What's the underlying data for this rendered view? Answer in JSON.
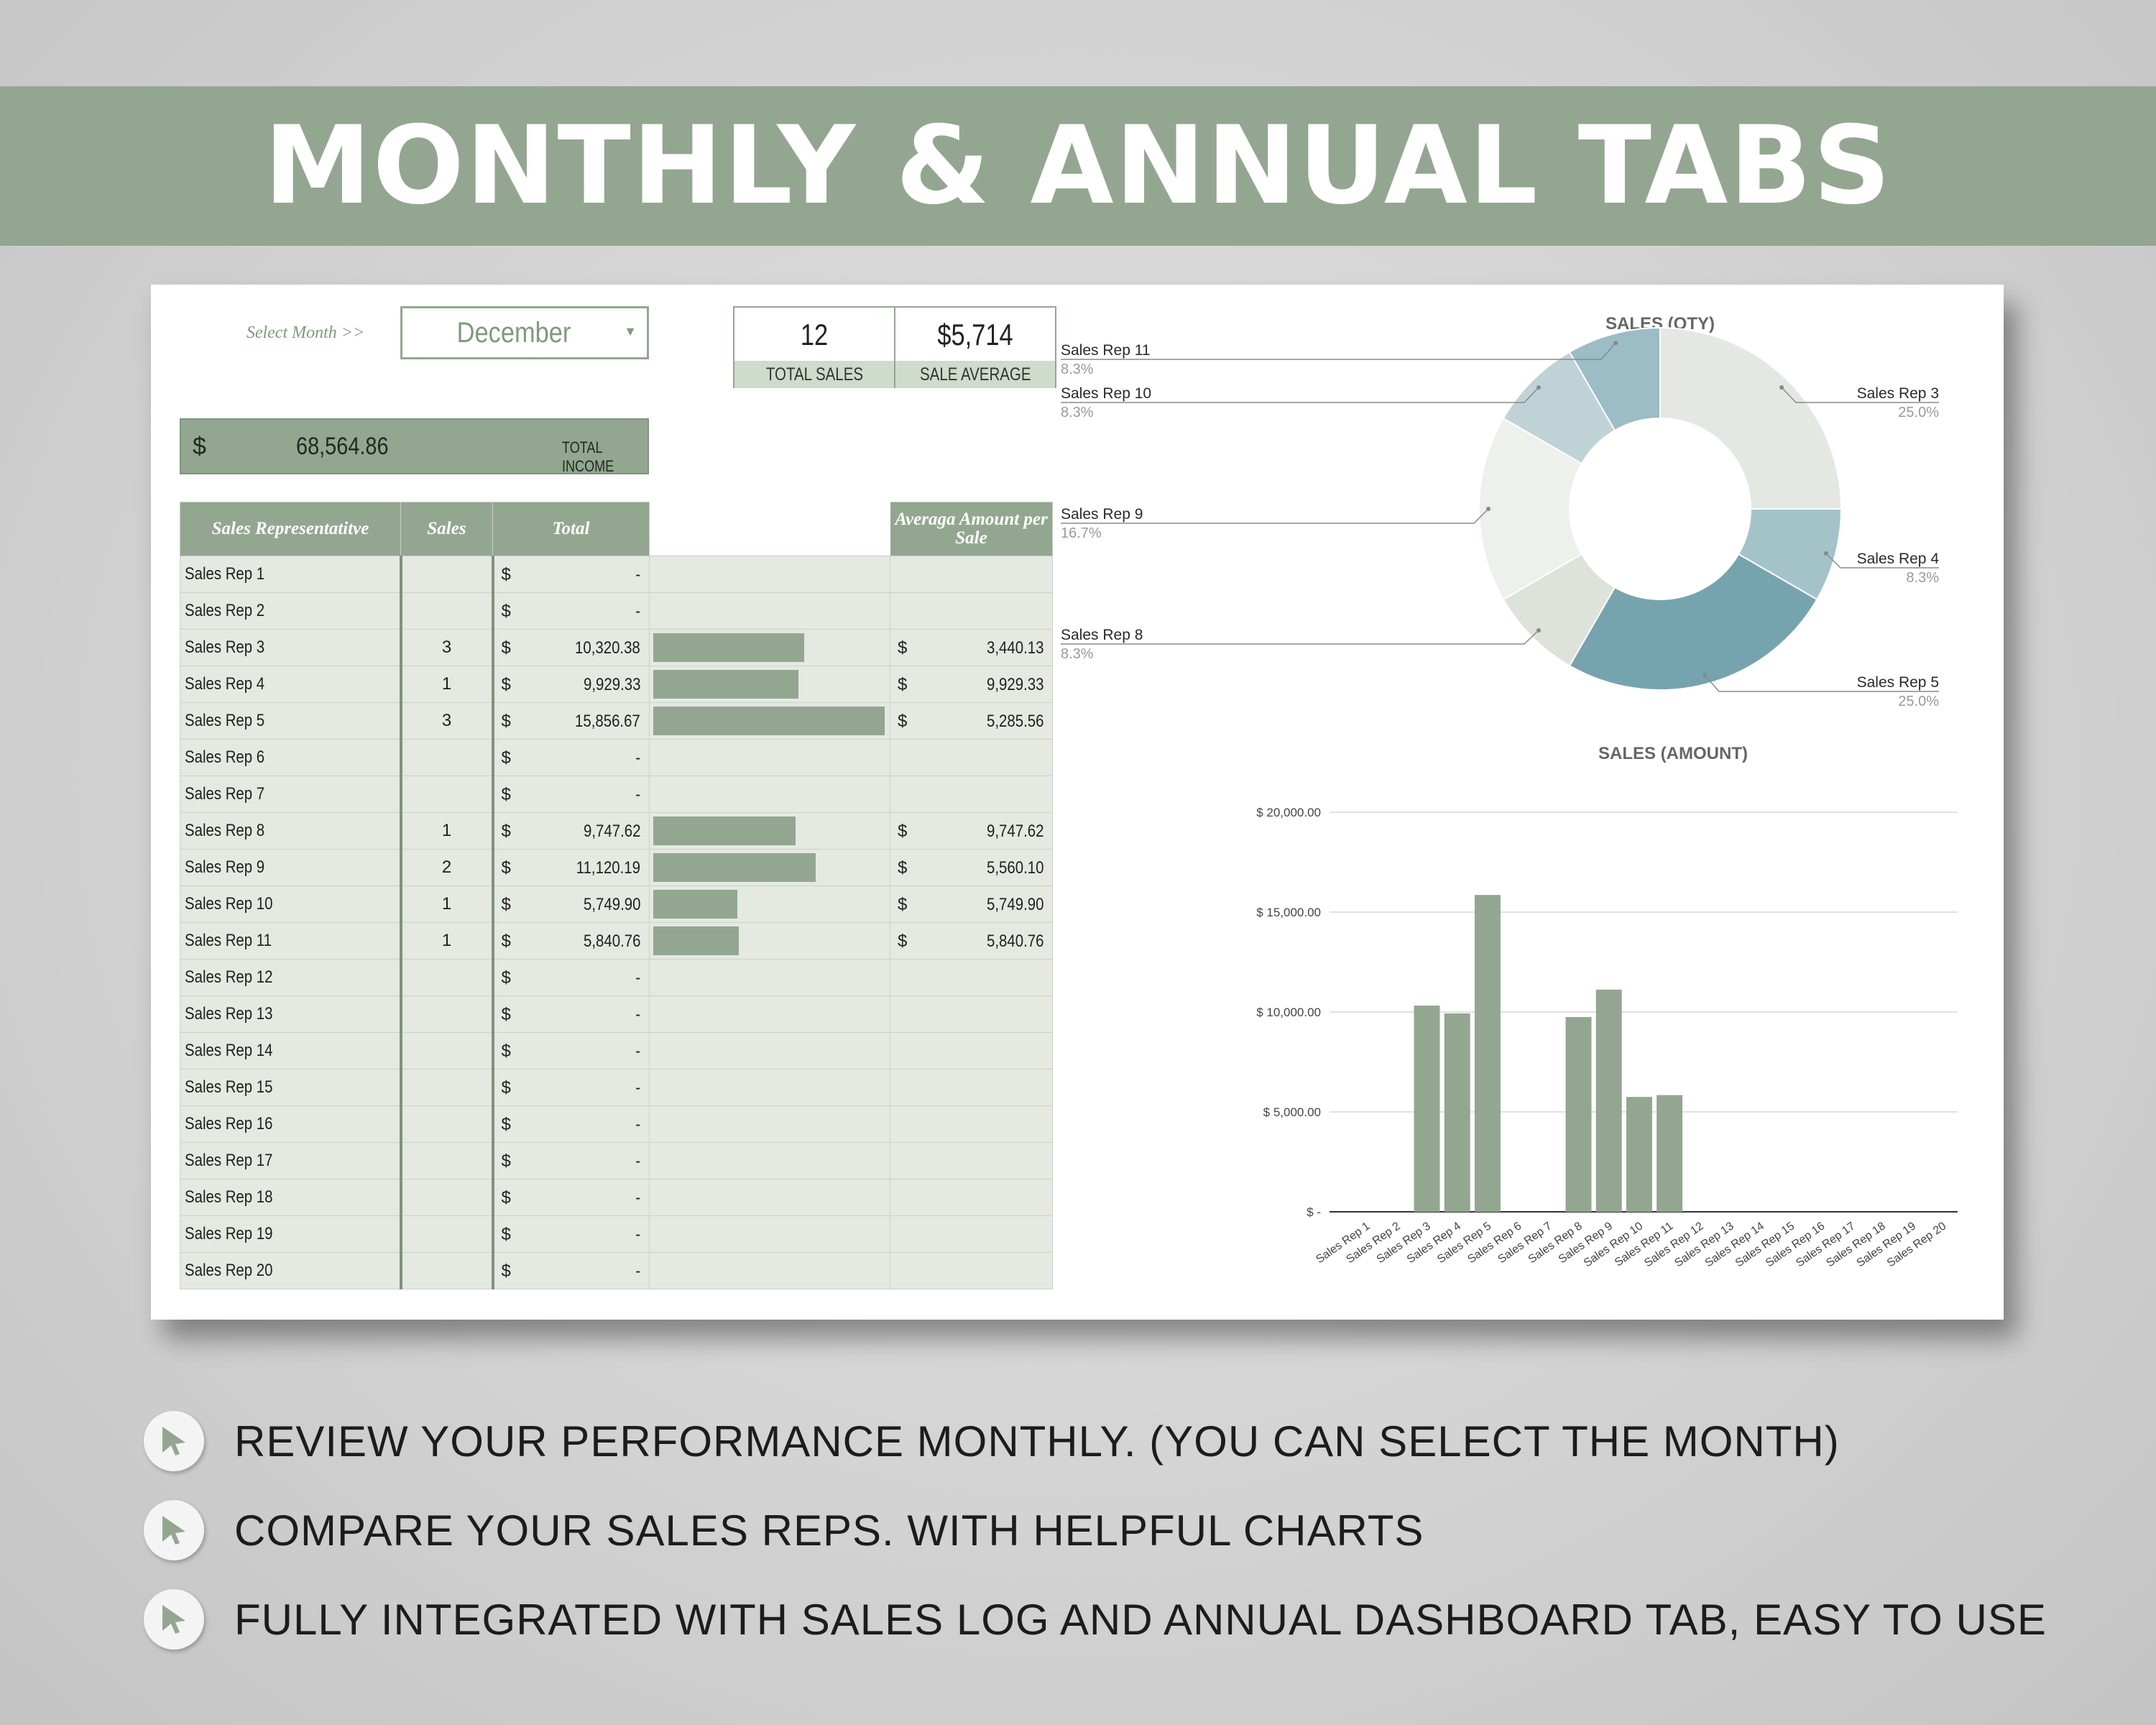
{
  "banner": {
    "title": "MONTHLY & ANNUAL TABS"
  },
  "dashboard": {
    "select_month_label": "Select Month >>",
    "selected_month": "December",
    "kpis": [
      {
        "value": "12",
        "label": "TOTAL SALES"
      },
      {
        "value": "$5,714",
        "label": "SALE AVERAGE"
      }
    ],
    "income": {
      "currency": "$",
      "value": "68,564.86",
      "label": "TOTAL INCOME"
    },
    "table": {
      "headers": [
        "Sales Representatitve",
        "Sales",
        "Total",
        "",
        "Averaga Amount per Sale"
      ],
      "rows": [
        {
          "name": "Sales Rep 1",
          "sales": "",
          "currency": "$",
          "total": "-",
          "bar": 0,
          "avg_currency": "",
          "avg": ""
        },
        {
          "name": "Sales Rep 2",
          "sales": "",
          "currency": "$",
          "total": "-",
          "bar": 0,
          "avg_currency": "",
          "avg": ""
        },
        {
          "name": "Sales Rep 3",
          "sales": "3",
          "currency": "$",
          "total": "10,320.38",
          "bar": 10320.38,
          "avg_currency": "$",
          "avg": "3,440.13"
        },
        {
          "name": "Sales Rep 4",
          "sales": "1",
          "currency": "$",
          "total": "9,929.33",
          "bar": 9929.33,
          "avg_currency": "$",
          "avg": "9,929.33"
        },
        {
          "name": "Sales Rep 5",
          "sales": "3",
          "currency": "$",
          "total": "15,856.67",
          "bar": 15856.67,
          "avg_currency": "$",
          "avg": "5,285.56"
        },
        {
          "name": "Sales Rep 6",
          "sales": "",
          "currency": "$",
          "total": "-",
          "bar": 0,
          "avg_currency": "",
          "avg": ""
        },
        {
          "name": "Sales Rep 7",
          "sales": "",
          "currency": "$",
          "total": "-",
          "bar": 0,
          "avg_currency": "",
          "avg": ""
        },
        {
          "name": "Sales Rep 8",
          "sales": "1",
          "currency": "$",
          "total": "9,747.62",
          "bar": 9747.62,
          "avg_currency": "$",
          "avg": "9,747.62"
        },
        {
          "name": "Sales Rep 9",
          "sales": "2",
          "currency": "$",
          "total": "11,120.19",
          "bar": 11120.19,
          "avg_currency": "$",
          "avg": "5,560.10"
        },
        {
          "name": "Sales Rep 10",
          "sales": "1",
          "currency": "$",
          "total": "5,749.90",
          "bar": 5749.9,
          "avg_currency": "$",
          "avg": "5,749.90"
        },
        {
          "name": "Sales Rep 11",
          "sales": "1",
          "currency": "$",
          "total": "5,840.76",
          "bar": 5840.76,
          "avg_currency": "$",
          "avg": "5,840.76"
        },
        {
          "name": "Sales Rep 12",
          "sales": "",
          "currency": "$",
          "total": "-",
          "bar": 0,
          "avg_currency": "",
          "avg": ""
        },
        {
          "name": "Sales Rep 13",
          "sales": "",
          "currency": "$",
          "total": "-",
          "bar": 0,
          "avg_currency": "",
          "avg": ""
        },
        {
          "name": "Sales Rep 14",
          "sales": "",
          "currency": "$",
          "total": "-",
          "bar": 0,
          "avg_currency": "",
          "avg": ""
        },
        {
          "name": "Sales Rep 15",
          "sales": "",
          "currency": "$",
          "total": "-",
          "bar": 0,
          "avg_currency": "",
          "avg": ""
        },
        {
          "name": "Sales Rep 16",
          "sales": "",
          "currency": "$",
          "total": "-",
          "bar": 0,
          "avg_currency": "",
          "avg": ""
        },
        {
          "name": "Sales Rep 17",
          "sales": "",
          "currency": "$",
          "total": "-",
          "bar": 0,
          "avg_currency": "",
          "avg": ""
        },
        {
          "name": "Sales Rep 18",
          "sales": "",
          "currency": "$",
          "total": "-",
          "bar": 0,
          "avg_currency": "",
          "avg": ""
        },
        {
          "name": "Sales Rep 19",
          "sales": "",
          "currency": "$",
          "total": "-",
          "bar": 0,
          "avg_currency": "",
          "avg": ""
        },
        {
          "name": "Sales Rep 20",
          "sales": "",
          "currency": "$",
          "total": "-",
          "bar": 0,
          "avg_currency": "",
          "avg": ""
        }
      ]
    }
  },
  "chart_data": [
    {
      "type": "pie",
      "title": "SALES (QTY)",
      "donut": true,
      "slices": [
        {
          "label": "Sales Rep 3",
          "value": 3,
          "percent": "25.0%",
          "color": "#e5e8e2"
        },
        {
          "label": "Sales Rep 4",
          "value": 1,
          "percent": "8.3%",
          "color": "#a4c3c9"
        },
        {
          "label": "Sales Rep 5",
          "value": 3,
          "percent": "25.0%",
          "color": "#76a4ae"
        },
        {
          "label": "Sales Rep 8",
          "value": 1,
          "percent": "8.3%",
          "color": "#dde2db"
        },
        {
          "label": "Sales Rep 9",
          "value": 2,
          "percent": "16.7%",
          "color": "#eef0ec"
        },
        {
          "label": "Sales Rep 10",
          "value": 1,
          "percent": "8.3%",
          "color": "#bfd3d7"
        },
        {
          "label": "Sales Rep 11",
          "value": 1,
          "percent": "8.3%",
          "color": "#9cbcc6"
        }
      ]
    },
    {
      "type": "bar",
      "title": "SALES (AMOUNT)",
      "categories": [
        "Sales Rep 1",
        "Sales Rep 2",
        "Sales Rep 3",
        "Sales Rep 4",
        "Sales Rep 5",
        "Sales Rep 6",
        "Sales Rep 7",
        "Sales Rep 8",
        "Sales Rep 9",
        "Sales Rep 10",
        "Sales Rep 11",
        "Sales Rep 12",
        "Sales Rep 13",
        "Sales Rep 14",
        "Sales Rep 15",
        "Sales Rep 16",
        "Sales Rep 17",
        "Sales Rep 18",
        "Sales Rep 19",
        "Sales Rep 20"
      ],
      "values": [
        0,
        0,
        10320.38,
        9929.33,
        15856.67,
        0,
        0,
        9747.62,
        11120.19,
        5749.9,
        5840.76,
        0,
        0,
        0,
        0,
        0,
        0,
        0,
        0,
        0
      ],
      "ylim": [
        0,
        20000
      ],
      "yticks": [
        0,
        5000,
        10000,
        15000,
        20000
      ],
      "ytick_labels": [
        "$ -",
        "$ 5,000.00",
        "$ 10,000.00",
        "$ 15,000.00",
        "$ 20,000.00"
      ],
      "grid": true,
      "bar_color": "#93a790"
    }
  ],
  "bullets": [
    {
      "text": "REVIEW YOUR PERFORMANCE MONTHLY. (YOU CAN SELECT THE MONTH)",
      "icon": "cursor-arrow-icon"
    },
    {
      "text": "COMPARE YOUR SALES REPS. WITH HELPFUL CHARTS",
      "icon": "cursor-arrow-icon"
    },
    {
      "text": "FULLY INTEGRATED WITH SALES LOG AND ANNUAL DASHBOARD TAB, EASY TO USE",
      "icon": "cursor-arrow-icon"
    }
  ]
}
